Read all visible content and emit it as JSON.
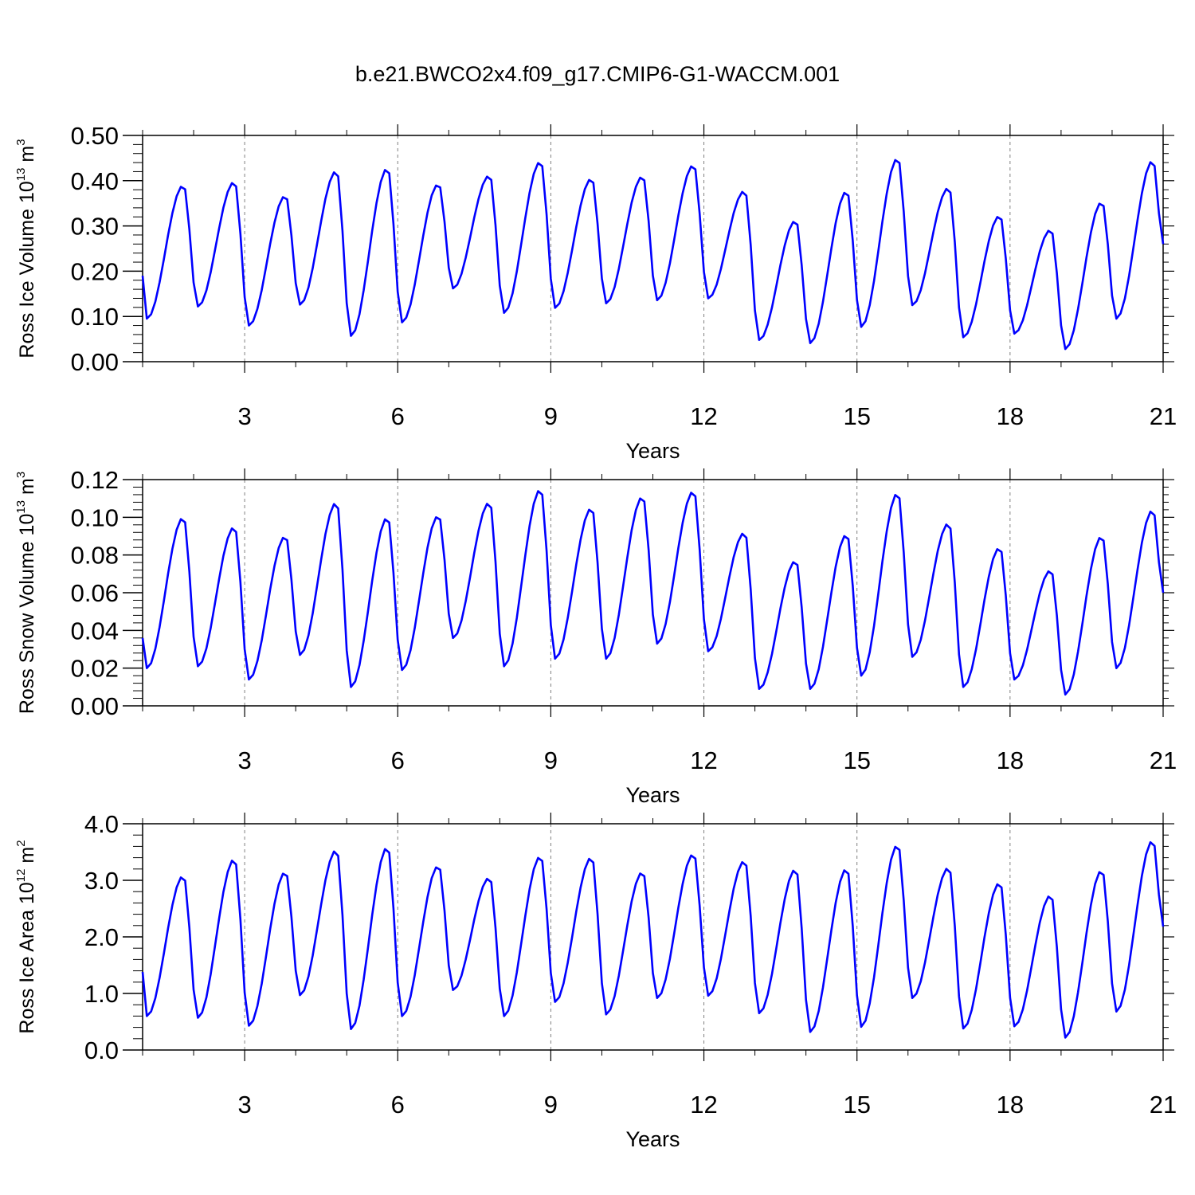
{
  "title": "b.e21.BWCO2x4.f09_g17.CMIP6-G1-WACCM.001",
  "colors": {
    "line": "#0000ff",
    "axis": "#000000",
    "gridline": "#808080"
  },
  "chart_data": [
    {
      "type": "line",
      "ylabel": "Ross Ice Volume 10",
      "ylabel_exp": "13",
      "ylabel_unit": " m",
      "ylabel_unit_exp": "3",
      "xlabel": "Years",
      "xlim": [
        1,
        21
      ],
      "ylim": [
        0,
        0.5
      ],
      "xticks": [
        3,
        6,
        9,
        12,
        15,
        18,
        21
      ],
      "xtick_labels": [
        "3",
        "6",
        "9",
        "12",
        "15",
        "18",
        "21"
      ],
      "yticks": [
        0,
        0.1,
        0.2,
        0.3,
        0.4,
        0.5
      ],
      "ytick_labels": [
        "0.00",
        "0.10",
        "0.20",
        "0.30",
        "0.40",
        "0.50"
      ],
      "grid": "dashed vertical lines at every 3 years",
      "series": [
        {
          "max": [
            0.39,
            0.398,
            0.367,
            0.422,
            0.428,
            0.393,
            0.412,
            0.443,
            0.405,
            0.41,
            0.435,
            0.378,
            0.312,
            0.377,
            0.45,
            0.385,
            0.323,
            0.292,
            0.353,
            0.445
          ],
          "min": [
            0.095,
            0.122,
            0.08,
            0.126,
            0.057,
            0.087,
            0.162,
            0.108,
            0.119,
            0.129,
            0.136,
            0.14,
            0.048,
            0.041,
            0.077,
            0.125,
            0.054,
            0.062,
            0.028,
            0.095
          ],
          "start": 0.19,
          "end": 0.26
        }
      ]
    },
    {
      "type": "line",
      "ylabel": "Ross Snow Volume 10",
      "ylabel_exp": "13",
      "ylabel_unit": " m",
      "ylabel_unit_exp": "3",
      "xlabel": "Years",
      "xlim": [
        1,
        21
      ],
      "ylim": [
        0,
        0.12
      ],
      "xticks": [
        3,
        6,
        9,
        12,
        15,
        18,
        21
      ],
      "xtick_labels": [
        "3",
        "6",
        "9",
        "12",
        "15",
        "18",
        "21"
      ],
      "yticks": [
        0,
        0.02,
        0.04,
        0.06,
        0.08,
        0.1,
        0.12
      ],
      "ytick_labels": [
        "0.00",
        "0.02",
        "0.04",
        "0.06",
        "0.08",
        "0.10",
        "0.12"
      ],
      "grid": "dashed vertical lines at every 3 years",
      "series": [
        {
          "max": [
            0.1,
            0.095,
            0.09,
            0.108,
            0.1,
            0.101,
            0.108,
            0.115,
            0.105,
            0.111,
            0.114,
            0.092,
            0.077,
            0.091,
            0.113,
            0.097,
            0.084,
            0.072,
            0.09,
            0.104
          ],
          "min": [
            0.02,
            0.021,
            0.014,
            0.027,
            0.01,
            0.019,
            0.036,
            0.021,
            0.025,
            0.025,
            0.033,
            0.029,
            0.009,
            0.009,
            0.016,
            0.026,
            0.01,
            0.014,
            0.006,
            0.02
          ],
          "start": 0.036,
          "end": 0.06
        }
      ]
    },
    {
      "type": "line",
      "ylabel": "Ross Ice Area 10",
      "ylabel_exp": "12",
      "ylabel_unit": " m",
      "ylabel_unit_exp": "2",
      "xlabel": "Years",
      "xlim": [
        1,
        21
      ],
      "ylim": [
        0,
        4.0
      ],
      "xticks": [
        3,
        6,
        9,
        12,
        15,
        18,
        21
      ],
      "xtick_labels": [
        "3",
        "6",
        "9",
        "12",
        "15",
        "18",
        "21"
      ],
      "yticks": [
        0,
        1.0,
        2.0,
        3.0,
        4.0
      ],
      "ytick_labels": [
        "0.0",
        "1.0",
        "2.0",
        "3.0",
        "4.0"
      ],
      "grid": "dashed vertical lines at every 3 years",
      "series": [
        {
          "max": [
            3.08,
            3.38,
            3.15,
            3.54,
            3.59,
            3.26,
            3.05,
            3.43,
            3.41,
            3.15,
            3.47,
            3.35,
            3.2,
            3.21,
            3.63,
            3.23,
            2.96,
            2.74,
            3.18,
            3.71
          ],
          "min": [
            0.6,
            0.57,
            0.43,
            0.97,
            0.37,
            0.6,
            1.06,
            0.6,
            0.85,
            0.63,
            0.92,
            0.96,
            0.65,
            0.32,
            0.41,
            0.92,
            0.38,
            0.42,
            0.22,
            0.68
          ],
          "start": 1.38,
          "end": 2.18
        }
      ]
    }
  ]
}
